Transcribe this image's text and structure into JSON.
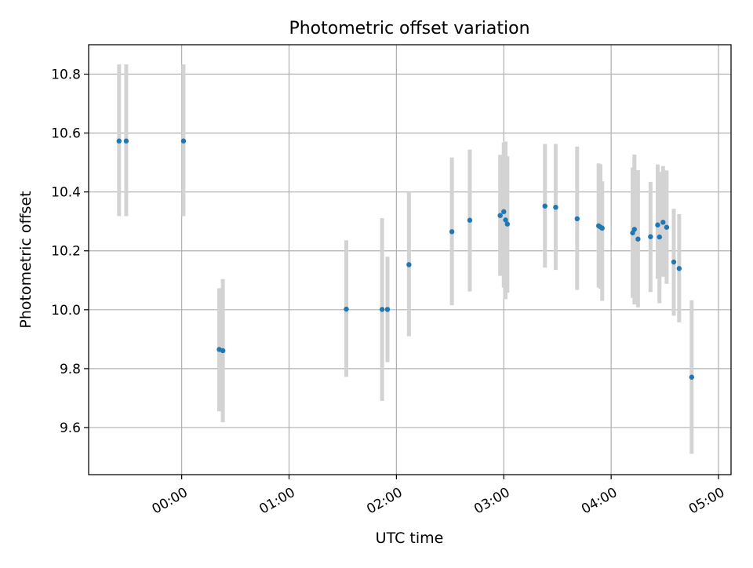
{
  "chart_data": {
    "type": "scatter",
    "title": "Photometric offset variation",
    "xlabel": "UTC time",
    "ylabel": "Photometric offset",
    "x_tick_labels": [
      "00:00",
      "01:00",
      "02:00",
      "03:00",
      "04:00",
      "05:00"
    ],
    "x_ticks": [
      "00:00",
      "01:00",
      "02:00",
      "03:00",
      "04:00",
      "05:00"
    ],
    "y_ticks": [
      9.6,
      9.8,
      10.0,
      10.2,
      10.4,
      10.6,
      10.8
    ],
    "y_tick_labels": [
      "9.6",
      "9.8",
      "10.0",
      "10.2",
      "10.4",
      "10.6",
      "10.8"
    ],
    "xlim": [
      "-00:52",
      "05:07"
    ],
    "ylim": [
      9.44,
      10.9
    ],
    "grid": true,
    "colors": {
      "point": "#1f77b4",
      "errorbar": "#d3d3d3",
      "grid": "#b0b0b0"
    },
    "series": [
      {
        "x": [
          "-00:35",
          "-00:31",
          "00:01",
          "00:21",
          "00:23",
          "01:32",
          "01:52",
          "01:55",
          "02:07",
          "02:31",
          "02:41",
          "02:58",
          "03:00",
          "03:01",
          "03:02",
          "03:23",
          "03:29",
          "03:41",
          "03:53",
          "03:54",
          "03:55",
          "04:12",
          "04:13",
          "04:15",
          "04:22",
          "04:26",
          "04:27",
          "04:29",
          "04:31",
          "04:35",
          "04:38",
          "04:45"
        ],
        "y": [
          10.573,
          10.573,
          10.573,
          9.865,
          9.861,
          10.002,
          10.001,
          10.001,
          10.153,
          10.265,
          10.304,
          10.32,
          10.333,
          10.305,
          10.291,
          10.352,
          10.348,
          10.309,
          10.285,
          10.281,
          10.277,
          10.261,
          10.273,
          10.24,
          10.248,
          10.288,
          10.247,
          10.297,
          10.28,
          10.162,
          10.14,
          9.771
        ],
        "yerr_low": [
          10.318,
          10.318,
          10.318,
          9.655,
          9.618,
          9.772,
          9.69,
          9.822,
          9.91,
          10.015,
          10.062,
          10.115,
          10.075,
          10.036,
          10.058,
          10.143,
          10.135,
          10.067,
          10.075,
          10.071,
          10.03,
          10.04,
          10.018,
          10.008,
          10.06,
          10.105,
          10.022,
          10.112,
          10.088,
          9.98,
          9.957,
          9.511
        ],
        "yerr_high": [
          10.833,
          10.833,
          10.833,
          10.073,
          10.104,
          10.236,
          10.311,
          10.18,
          10.4,
          10.517,
          10.544,
          10.526,
          10.568,
          10.571,
          10.521,
          10.563,
          10.563,
          10.554,
          10.497,
          10.494,
          10.436,
          10.483,
          10.527,
          10.474,
          10.434,
          10.493,
          10.468,
          10.488,
          10.473,
          10.343,
          10.325,
          10.032
        ]
      }
    ]
  }
}
